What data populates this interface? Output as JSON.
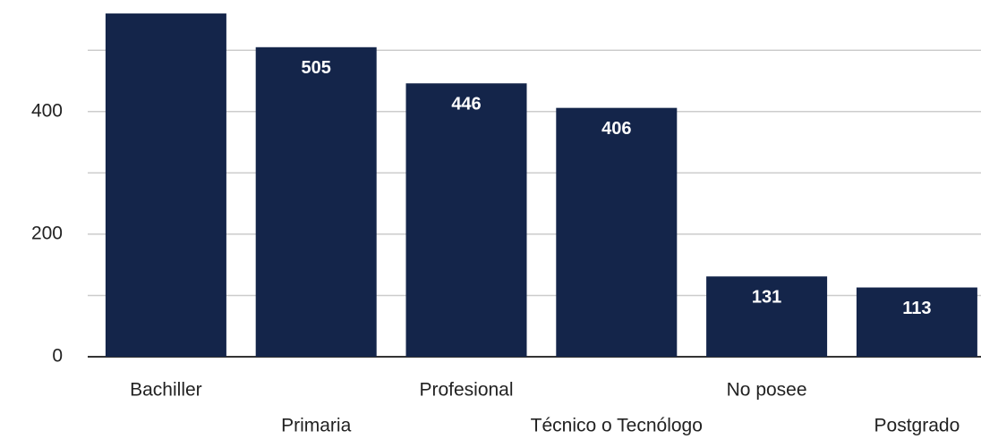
{
  "chart_data": {
    "type": "bar",
    "categories": [
      "Bachiller",
      "Primaria",
      "Profesional",
      "Técnico o Tecnólogo",
      "No posee",
      "Postgrado"
    ],
    "values": [
      560,
      505,
      446,
      406,
      131,
      113
    ],
    "value_labels": [
      null,
      "505",
      "446",
      "406",
      "131",
      "113"
    ],
    "color": "#14254a",
    "ylim": [
      0,
      582
    ],
    "yticks": [
      0,
      200,
      400
    ],
    "minor_yticks": [
      100,
      300,
      500
    ],
    "grid": true
  }
}
